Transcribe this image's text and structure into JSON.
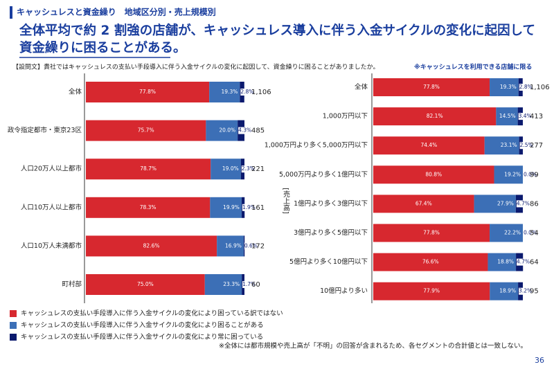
{
  "header": {
    "section": "キャッシュレスと資金繰り　地域区分別・売上規模別",
    "title_lines": [
      "全体平均で約 2 割強の店舗が、キャッシュレス導入に伴う入金サイクルの変化に起因して",
      "資金繰りに困ることがある。"
    ]
  },
  "question": "【設問文】貴社ではキャッシュレスの支払い手段導入に伴う入金サイクルの変化に起因して、資金繰りに困ることがありましたか。",
  "scope_note": "※キャッシュレスを利用できる店舗に限る",
  "footnote": "※全体には都市規模や売上高が「不明」の回答が含まれるため、各セグメントの合計値とは一致しない。",
  "page_number": "36",
  "chart_data": [
    {
      "type": "bar",
      "orientation": "horizontal",
      "stacked": true,
      "xlim": [
        0,
        100
      ],
      "categories": [
        "全体",
        "政令指定都市・東京23区",
        "人口20万人以上都市",
        "人口10万人以上都市",
        "人口10万人未満都市",
        "町村部"
      ],
      "series": [
        {
          "name": "キャッシュレスの支払い手段導入に伴う入金サイクルの変化により困っている訳ではない",
          "color": "#d7282f",
          "values": [
            77.8,
            75.7,
            78.7,
            78.3,
            82.6,
            75.0
          ],
          "value_labels": [
            "77.8%",
            "75.7%",
            "78.7%",
            "78.3%",
            "82.6%",
            "75.0%"
          ]
        },
        {
          "name": "キャッシュレスの支払い手段導入に伴う入金サイクルの変化により困ることがある",
          "color": "#3c6fb6",
          "values": [
            19.3,
            20.0,
            19.0,
            19.9,
            16.9,
            23.3
          ],
          "value_labels": [
            "19.3%",
            "20.0%",
            "19.0%",
            "19.9%",
            "16.9%",
            "23.3%"
          ]
        },
        {
          "name": "キャッシュレスの支払い手段導入に伴う入金サイクルの変化により常に困っている",
          "color": "#0b1a6e",
          "values": [
            2.8,
            4.3,
            2.3,
            1.9,
            0.6,
            1.7
          ],
          "value_labels": [
            "2.8%",
            "4.3%",
            "2.3%",
            "1.9%",
            "0.6%",
            "1.7%"
          ]
        }
      ],
      "sample_sizes": [
        "1,106",
        "485",
        "221",
        "161",
        "172",
        "60"
      ]
    },
    {
      "type": "bar",
      "orientation": "horizontal",
      "stacked": true,
      "xlim": [
        0,
        100
      ],
      "y_axis_label": "[売上高]",
      "categories": [
        "全体",
        "1,000万円以下",
        "1,000万円より多く5,000万円以下",
        "5,000万円より多く1億円以下",
        "1億円より多く3億円以下",
        "3億円より多く5億円以下",
        "5億円より多く10億円以下",
        "10億円より多い"
      ],
      "series": [
        {
          "color": "#d7282f",
          "values": [
            77.8,
            82.1,
            74.4,
            80.8,
            67.4,
            77.8,
            76.6,
            77.9
          ],
          "value_labels": [
            "77.8%",
            "82.1%",
            "74.4%",
            "80.8%",
            "67.4%",
            "77.8%",
            "76.6%",
            "77.9%"
          ]
        },
        {
          "color": "#3c6fb6",
          "values": [
            19.3,
            14.5,
            23.1,
            19.2,
            27.9,
            22.2,
            18.8,
            18.9
          ],
          "value_labels": [
            "19.3%",
            "14.5%",
            "23.1%",
            "19.2%",
            "27.9%",
            "22.2%",
            "18.8%",
            "18.9%"
          ]
        },
        {
          "color": "#0b1a6e",
          "values": [
            2.8,
            3.4,
            2.5,
            0.0,
            4.7,
            0.0,
            4.7,
            3.2
          ],
          "value_labels": [
            "2.8%",
            "3.4%",
            "2.5%",
            "0.0%",
            "4.7%",
            "0.0%",
            "4.7%",
            "3.2%"
          ]
        }
      ],
      "sample_sizes": [
        "1,106",
        "413",
        "277",
        "99",
        "86",
        "54",
        "64",
        "95"
      ]
    }
  ]
}
